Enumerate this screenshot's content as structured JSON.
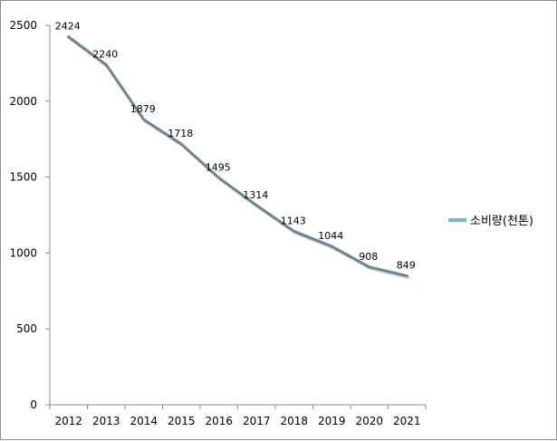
{
  "chart_data": {
    "type": "line",
    "title": "",
    "xlabel": "",
    "ylabel": "",
    "categories": [
      "2012",
      "2013",
      "2014",
      "2015",
      "2016",
      "2017",
      "2018",
      "2019",
      "2020",
      "2021"
    ],
    "series": [
      {
        "name": "소비량(천톤)",
        "values": [
          2424,
          2240,
          1879,
          1718,
          1495,
          1314,
          1143,
          1044,
          908,
          849
        ],
        "color": "#6b8594",
        "legend_color": "#7bb3c8"
      }
    ],
    "y_ticks": [
      0,
      500,
      1000,
      1500,
      2000,
      2500
    ],
    "ylim": [
      0,
      2500
    ],
    "grid": false,
    "legend_position": "right",
    "data_labels": true
  }
}
